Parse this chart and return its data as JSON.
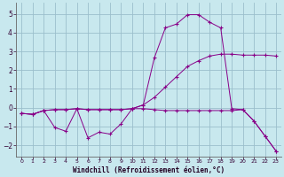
{
  "xlabel": "Windchill (Refroidissement éolien,°C)",
  "background_color": "#c8e8ee",
  "grid_color": "#9bbfcc",
  "line_color": "#880088",
  "xlim": [
    -0.5,
    23.5
  ],
  "ylim": [
    -2.6,
    5.6
  ],
  "yticks": [
    -2,
    -1,
    0,
    1,
    2,
    3,
    4,
    5
  ],
  "xticks": [
    0,
    1,
    2,
    3,
    4,
    5,
    6,
    7,
    8,
    9,
    10,
    11,
    12,
    13,
    14,
    15,
    16,
    17,
    18,
    19,
    20,
    21,
    22,
    23
  ],
  "series1_x": [
    0,
    1,
    2,
    3,
    4,
    5,
    6,
    7,
    8,
    9,
    10,
    11,
    12,
    13,
    14,
    15,
    16,
    17,
    18,
    19,
    20,
    21,
    22,
    23
  ],
  "series1_y": [
    -0.3,
    -0.35,
    -0.15,
    -1.05,
    -1.25,
    -0.05,
    -1.6,
    -1.3,
    -1.4,
    -0.85,
    -0.05,
    0.15,
    2.65,
    4.25,
    4.45,
    4.95,
    4.95,
    4.55,
    4.25,
    -0.05,
    -0.1,
    -0.7,
    -1.5,
    -2.3
  ],
  "series2_x": [
    0,
    1,
    2,
    3,
    4,
    5,
    6,
    7,
    8,
    9,
    10,
    11,
    12,
    13,
    14,
    15,
    16,
    17,
    18,
    19,
    20,
    21,
    22,
    23
  ],
  "series2_y": [
    -0.3,
    -0.35,
    -0.15,
    -0.1,
    -0.1,
    -0.05,
    -0.1,
    -0.1,
    -0.1,
    -0.1,
    -0.05,
    0.15,
    0.55,
    1.1,
    1.65,
    2.2,
    2.5,
    2.75,
    2.85,
    2.85,
    2.8,
    2.8,
    2.8,
    2.75
  ],
  "series3_x": [
    0,
    1,
    2,
    3,
    4,
    5,
    6,
    7,
    8,
    9,
    10,
    11,
    12,
    13,
    14,
    15,
    16,
    17,
    18,
    19,
    20,
    21,
    22,
    23
  ],
  "series3_y": [
    -0.3,
    -0.35,
    -0.15,
    -0.1,
    -0.1,
    -0.05,
    -0.1,
    -0.1,
    -0.1,
    -0.1,
    -0.05,
    -0.05,
    -0.1,
    -0.15,
    -0.15,
    -0.15,
    -0.15,
    -0.15,
    -0.15,
    -0.15,
    -0.1,
    -0.7,
    -1.5,
    -2.3
  ]
}
